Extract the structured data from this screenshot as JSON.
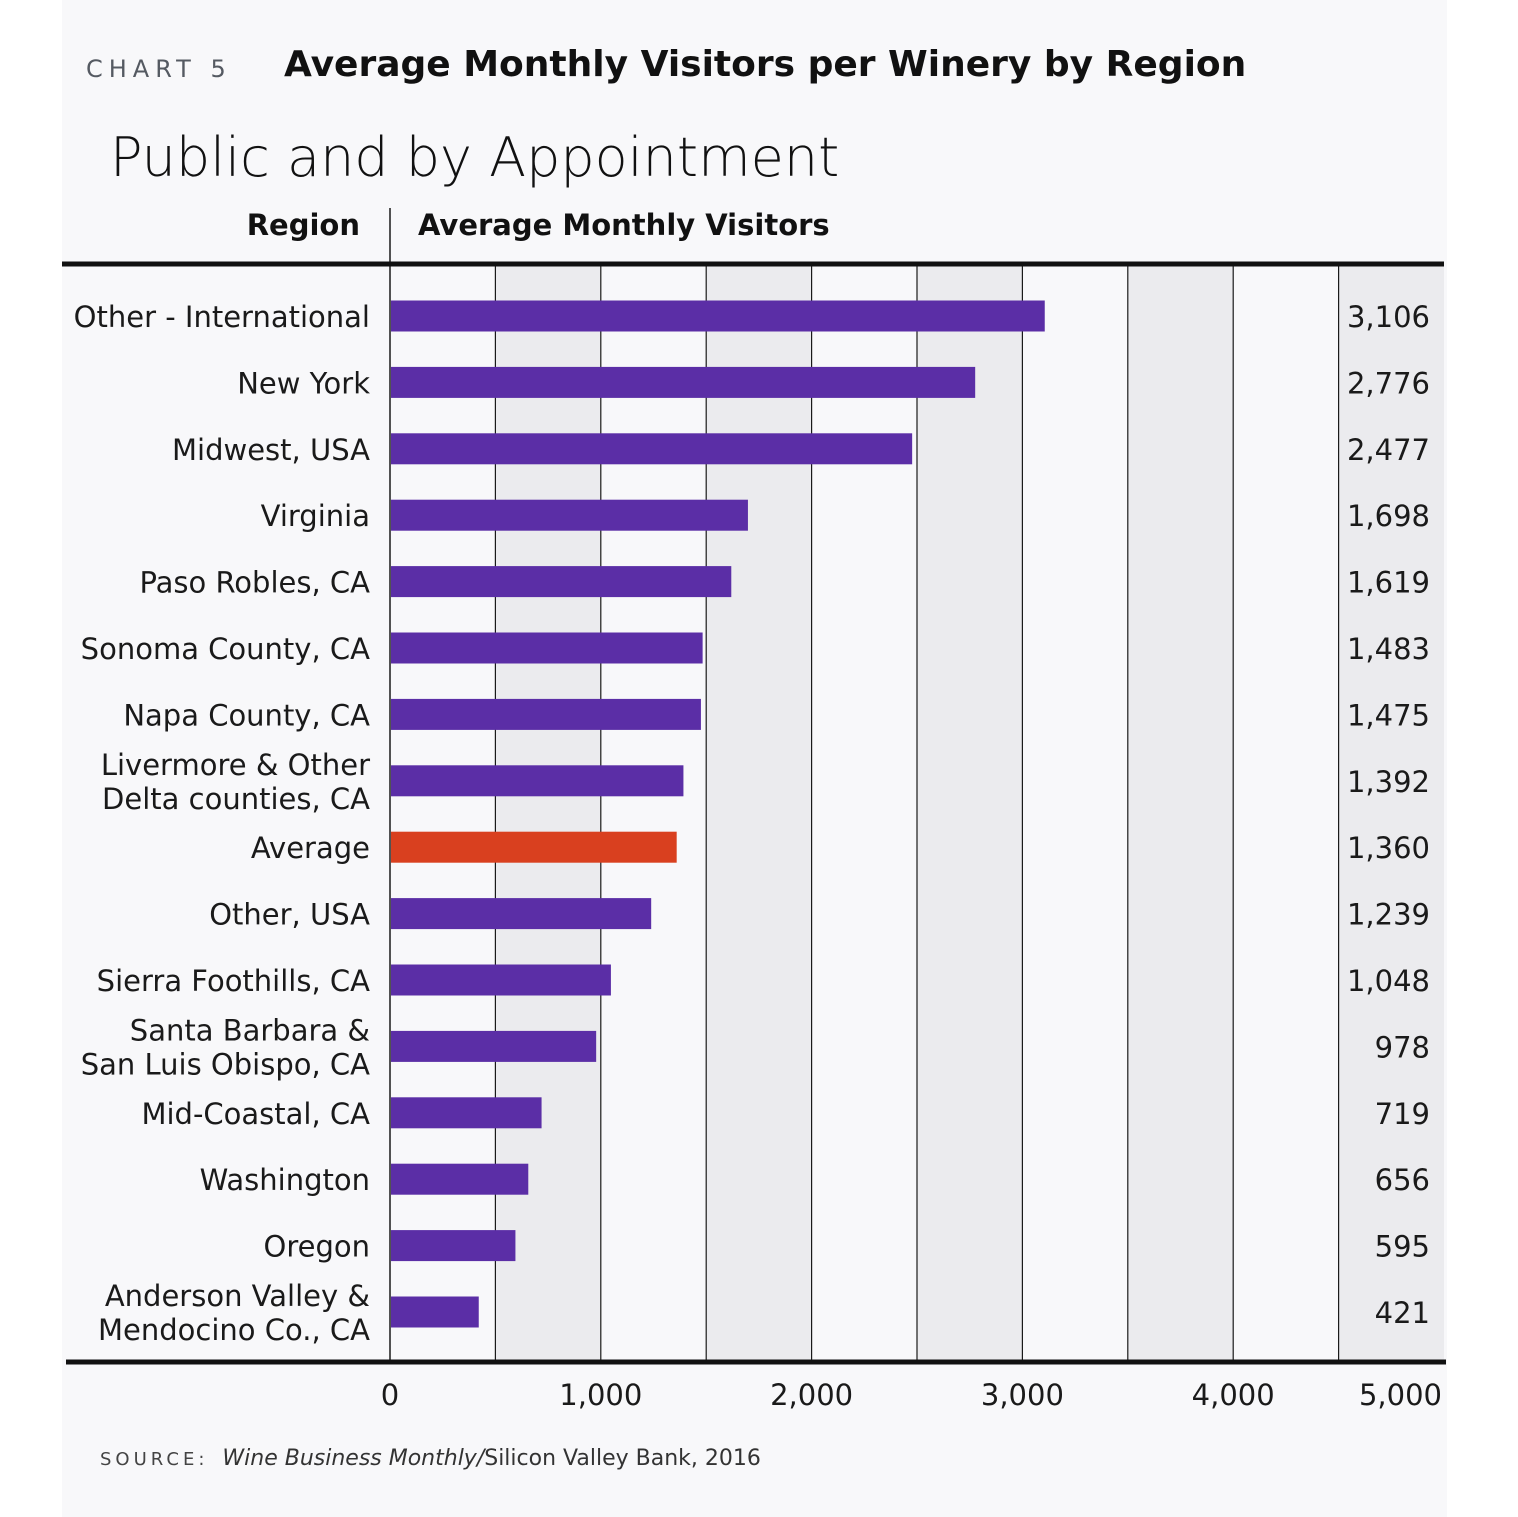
{
  "header": {
    "chart_label": "CHART 5",
    "title": "Average Monthly Visitors per Winery by Region",
    "subtitle": "Public and by Appointment",
    "col_region": "Region",
    "col_visitors": "Average Monthly Visitors"
  },
  "source": {
    "label": "SOURCE:",
    "italic": "Wine Business Monthly/",
    "rest": "Silicon Valley Bank, 2016"
  },
  "colors": {
    "bar": "#5b2ea6",
    "highlight": "#d9401f",
    "grid_light": "#ebebee"
  },
  "chart_data": {
    "type": "bar",
    "orientation": "horizontal",
    "title": "Average Monthly Visitors per Winery by Region",
    "subtitle": "Public and by Appointment",
    "xlabel": "Average Monthly Visitors",
    "ylabel": "Region",
    "xlim": [
      0,
      5000
    ],
    "xticks": [
      0,
      1000,
      2000,
      3000,
      4000,
      5000
    ],
    "xtick_labels": [
      "0",
      "1,000",
      "2,000",
      "3,000",
      "4,000",
      "5,000"
    ],
    "grid": true,
    "categories": [
      [
        "Other - International"
      ],
      [
        "New York"
      ],
      [
        "Midwest, USA"
      ],
      [
        "Virginia"
      ],
      [
        "Paso Robles, CA"
      ],
      [
        "Sonoma County, CA"
      ],
      [
        "Napa County, CA"
      ],
      [
        "Livermore & Other",
        "Delta counties, CA"
      ],
      [
        "Average"
      ],
      [
        "Other, USA"
      ],
      [
        "Sierra Foothills, CA"
      ],
      [
        "Santa Barbara &",
        "San Luis Obispo, CA"
      ],
      [
        "Mid-Coastal, CA"
      ],
      [
        "Washington"
      ],
      [
        "Oregon"
      ],
      [
        "Anderson Valley &",
        "Mendocino Co., CA"
      ]
    ],
    "values": [
      3106,
      2776,
      2477,
      1698,
      1619,
      1483,
      1475,
      1392,
      1360,
      1239,
      1048,
      978,
      719,
      656,
      595,
      421
    ],
    "value_labels": [
      "3,106",
      "2,776",
      "2,477",
      "1,698",
      "1,619",
      "1,483",
      "1,475",
      "1,392",
      "1,360",
      "1,239",
      "1,048",
      "978",
      "719",
      "656",
      "595",
      "421"
    ],
    "highlight": [
      "Average"
    ]
  }
}
